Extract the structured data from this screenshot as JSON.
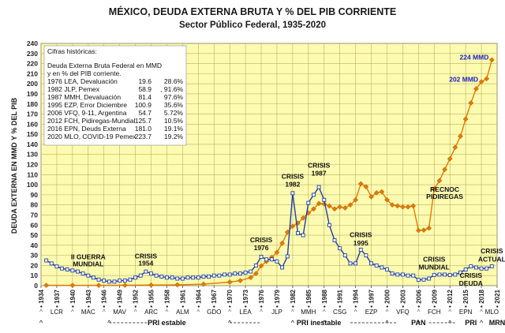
{
  "chart_data": {
    "type": "line",
    "title": "MÉXICO, DEUDA EXTERNA BRUTA Y % DEL PIB CORRIENTE",
    "subtitle": "Sector Público Federal, 1935-2020",
    "ylabel": "DEUDA EXTERNA EN MMD Y % DEL PIB",
    "ylim": [
      0,
      240
    ],
    "yticks": [
      0,
      10,
      20,
      30,
      40,
      50,
      60,
      70,
      80,
      90,
      100,
      110,
      120,
      130,
      140,
      150,
      160,
      170,
      180,
      190,
      200,
      210,
      220,
      230,
      240
    ],
    "xlim": [
      1934,
      2021
    ],
    "xtick_labels": [
      "1934",
      "1937",
      "1940",
      "1943",
      "1946",
      "1949",
      "1952",
      "1955",
      "1958",
      "1961",
      "1964",
      "1967",
      "1970",
      "1973",
      "1976",
      "1979",
      "1982",
      "1985",
      "1988",
      "1991",
      "1994",
      "1997",
      "2000",
      "2003",
      "2006",
      "2009",
      "2012",
      "2015",
      "2018",
      "2021"
    ],
    "series": [
      {
        "name": "Deuda externa bruta (MMD)",
        "color": "#e07b00",
        "x": [
          1935,
          1940,
          1945,
          1950,
          1955,
          1960,
          1965,
          1970,
          1972,
          1974,
          1975,
          1976,
          1977,
          1978,
          1979,
          1980,
          1981,
          1982,
          1983,
          1984,
          1985,
          1986,
          1987,
          1988,
          1989,
          1990,
          1991,
          1992,
          1993,
          1994,
          1995,
          1996,
          1997,
          1998,
          1999,
          2000,
          2001,
          2002,
          2003,
          2004,
          2005,
          2006,
          2007,
          2008,
          2009,
          2010,
          2011,
          2012,
          2013,
          2014,
          2015,
          2016,
          2017,
          2018,
          2019,
          2020
        ],
        "values": [
          0.3,
          0.3,
          0.3,
          0.4,
          0.6,
          0.8,
          1.5,
          3.5,
          5,
          8,
          12,
          19.6,
          24,
          28,
          33,
          42,
          53,
          58.9,
          62,
          67,
          72,
          76,
          81.4,
          81,
          79,
          76,
          78,
          77,
          80,
          85,
          100.9,
          98,
          88,
          92,
          93,
          85,
          80,
          79,
          78,
          78,
          79,
          54.7,
          55,
          57,
          96,
          104,
          115,
          125.7,
          137,
          148,
          165,
          181,
          195,
          202,
          205,
          223.7
        ]
      },
      {
        "name": "% del PIB",
        "color": "#1f3fa8",
        "x": [
          1935,
          1936,
          1937,
          1938,
          1939,
          1940,
          1941,
          1942,
          1943,
          1944,
          1945,
          1946,
          1947,
          1948,
          1949,
          1950,
          1951,
          1952,
          1953,
          1954,
          1955,
          1956,
          1957,
          1958,
          1959,
          1960,
          1961,
          1962,
          1963,
          1964,
          1965,
          1966,
          1967,
          1968,
          1969,
          1970,
          1971,
          1972,
          1973,
          1974,
          1975,
          1976,
          1977,
          1978,
          1979,
          1980,
          1981,
          1982,
          1983,
          1984,
          1985,
          1986,
          1987,
          1988,
          1989,
          1990,
          1991,
          1992,
          1993,
          1994,
          1995,
          1996,
          1997,
          1998,
          1999,
          2000,
          2001,
          2002,
          2003,
          2004,
          2005,
          2006,
          2007,
          2008,
          2009,
          2010,
          2011,
          2012,
          2013,
          2014,
          2015,
          2016,
          2017,
          2018,
          2019,
          2020
        ],
        "values": [
          25,
          22,
          19,
          17,
          16,
          15,
          14,
          12,
          10,
          8,
          6,
          5,
          4,
          4,
          5,
          5,
          6,
          8,
          10,
          14,
          12,
          10,
          9,
          8,
          8,
          7,
          7,
          8,
          8,
          8,
          9,
          9,
          10,
          10,
          11,
          11,
          12,
          12,
          13,
          14,
          20,
          28.6,
          26,
          26,
          24,
          18,
          29,
          91.6,
          52,
          50,
          82,
          90,
          97.6,
          85,
          60,
          45,
          37,
          30,
          22,
          22,
          35.6,
          30,
          22,
          20,
          18,
          16,
          12,
          11,
          11,
          10,
          10,
          5.72,
          6,
          7,
          10.5,
          11,
          11,
          10.5,
          11,
          13,
          16,
          19.1,
          18,
          17,
          17,
          19.2
        ]
      }
    ],
    "historical_table": {
      "header1": "Cifras históricas:",
      "header2": "Deuda Externa Bruta Federal en MMD",
      "header3": "y en % del PIB corriente.",
      "rows": [
        {
          "label": "1976 LEA, Devaluación",
          "mmd": "19.6",
          "pib": "28.6%"
        },
        {
          "label": "1982 JLP, Pemex",
          "mmd": "58.9",
          "pib": ", 91.6%"
        },
        {
          "label": "1987 MMH, Devaluación",
          "mmd": "81.4",
          "pib": "97.6%"
        },
        {
          "label": "1995 EZP, Error Diciembre",
          "mmd": "100.9",
          "pib": "35.6%"
        },
        {
          "label": "2006 VFQ, 9-11, Argentina",
          "mmd": "54.7",
          "pib": "5.72%"
        },
        {
          "label": "2012 FCH, Pidiregas-Mundial",
          "mmd": "125.7",
          "pib": "10.5%"
        },
        {
          "label": "2016 EPN, Deuds Externa",
          "mmd": "181.0",
          "pib": "19.1%"
        },
        {
          "label": "2020 MLO, COVID-19 Pemex",
          "mmd": "223.7",
          "pib": "19.2%"
        }
      ]
    },
    "annotations": [
      {
        "text": "224 MMD",
        "x": 2020,
        "y": 224,
        "color": "#2020c0"
      },
      {
        "text": "202 MMD",
        "x": 2018,
        "y": 202,
        "color": "#2020c0"
      },
      {
        "text": "II GUERRA",
        "x": 1943,
        "y": 26
      },
      {
        "text": "MUNDIAL",
        "x": 1943,
        "y": 19
      },
      {
        "text": "CRISIS",
        "x": 1954,
        "y": 27
      },
      {
        "text": "1954",
        "x": 1954,
        "y": 20
      },
      {
        "text": "CRISIS",
        "x": 1976,
        "y": 43
      },
      {
        "text": "1976",
        "x": 1976,
        "y": 35
      },
      {
        "text": "CRISIS",
        "x": 1982,
        "y": 106
      },
      {
        "text": "1982",
        "x": 1982,
        "y": 98
      },
      {
        "text": "CRISIS",
        "x": 1987,
        "y": 117
      },
      {
        "text": "1987",
        "x": 1987,
        "y": 109
      },
      {
        "text": "CRISIS",
        "x": 1995,
        "y": 48
      },
      {
        "text": "1995",
        "x": 1995,
        "y": 40
      },
      {
        "text": "RECNOC",
        "x": 2011,
        "y": 93
      },
      {
        "text": "PIDIREGAS",
        "x": 2011,
        "y": 86
      },
      {
        "text": "CRISIS",
        "x": 2009,
        "y": 24
      },
      {
        "text": "MUNDIAL",
        "x": 2009,
        "y": 16
      },
      {
        "text": "CRISIS",
        "x": 2016,
        "y": 8
      },
      {
        "text": "DEUDA",
        "x": 2016,
        "y": 0
      },
      {
        "text": "CRISIS",
        "x": 2020,
        "y": 32
      },
      {
        "text": "ACTUAL",
        "x": 2020,
        "y": 24
      }
    ],
    "presidents": [
      "LCR",
      "MAC",
      "MAV",
      "ARC",
      "ALM",
      "GDO",
      "LEA",
      "JLP",
      "MMH",
      "CSG",
      "EZP",
      "VFQ",
      "FCH",
      "EPN",
      "MLO"
    ],
    "president_years": [
      1937,
      1943,
      1949,
      1955,
      1961,
      1967,
      1973,
      1979,
      1985,
      1991,
      1997,
      2003,
      2009,
      2015,
      2020
    ],
    "parties": [
      {
        "label": "PRI estable",
        "x": 1958
      },
      {
        "label": "PRI inestable",
        "x": 1987
      },
      {
        "label": "PAN",
        "x": 2006
      },
      {
        "label": "PRI",
        "x": 2016
      },
      {
        "label": "MRN",
        "x": 2021
      }
    ],
    "party_caret_years": [
      1934,
      1947,
      1970,
      1982,
      1988,
      2000,
      2006,
      2012,
      2018
    ]
  }
}
